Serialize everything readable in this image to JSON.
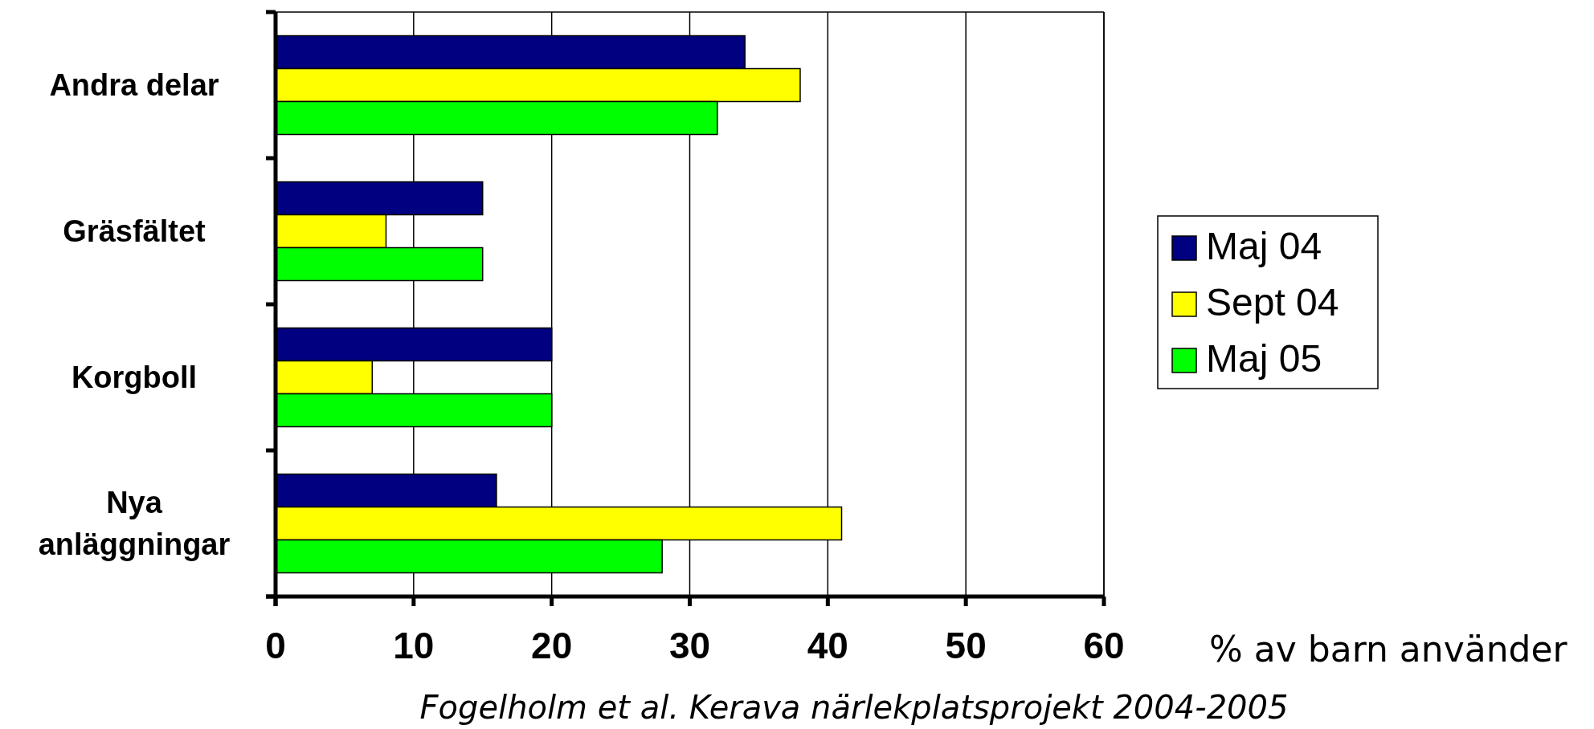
{
  "chart_data": {
    "type": "bar",
    "orientation": "horizontal",
    "xlabel": "% av barn använder",
    "categories": [
      "Andra delar",
      "Gräsfältet",
      "Korgboll",
      "Nya anläggningar"
    ],
    "series": [
      {
        "name": "Maj 04",
        "color": "#000080",
        "values": [
          34,
          15,
          20,
          16
        ]
      },
      {
        "name": "Sept 04",
        "color": "#ffff00",
        "values": [
          38,
          8,
          7,
          41
        ]
      },
      {
        "name": "Maj 05",
        "color": "#00ff00",
        "values": [
          32,
          15,
          20,
          28
        ]
      }
    ],
    "xlim": [
      0,
      60
    ],
    "xticks": [
      0,
      10,
      20,
      30,
      40,
      50,
      60
    ],
    "grid": "x",
    "legend": "right",
    "annotations": [
      "Fogelholm et al. Kerava  närlekplatsprojekt 2004-2005"
    ]
  }
}
